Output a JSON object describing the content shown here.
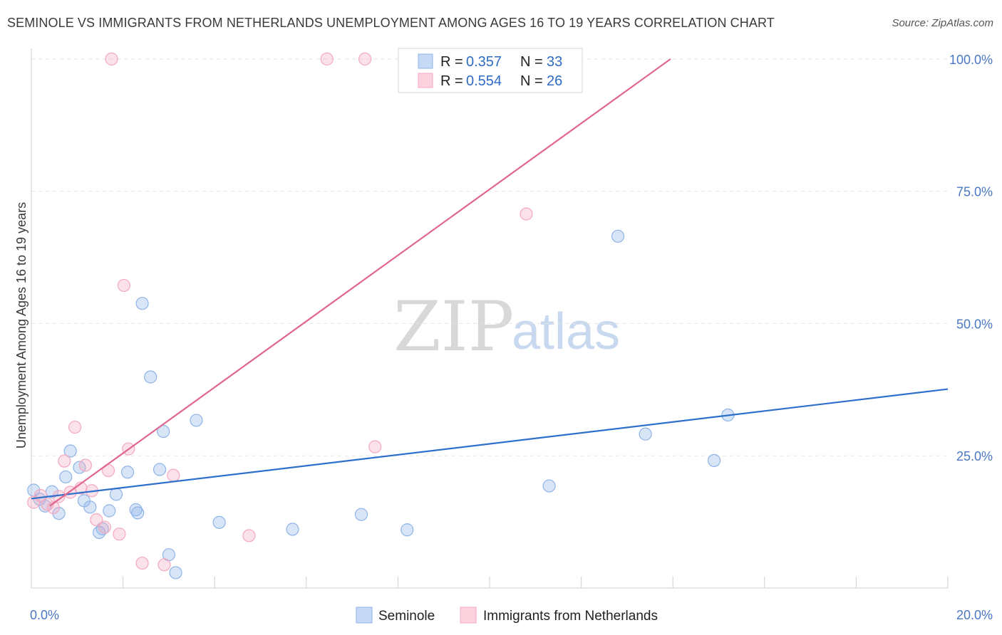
{
  "title": "SEMINOLE VS IMMIGRANTS FROM NETHERLANDS UNEMPLOYMENT AMONG AGES 16 TO 19 YEARS CORRELATION CHART",
  "source": "Source: ZipAtlas.com",
  "watermark": {
    "zip": "ZIP",
    "atlas": "atlas"
  },
  "chart_data": {
    "type": "scatter",
    "xlabel": "",
    "ylabel": "Unemployment Among Ages 16 to 19 years",
    "xlim": [
      0,
      20
    ],
    "ylim": [
      0,
      102
    ],
    "x_tick_labels": [
      "0.0%",
      "20.0%"
    ],
    "y_ticks": [
      25,
      50,
      75,
      100
    ],
    "y_tick_labels": [
      "25.0%",
      "50.0%",
      "75.0%",
      "100.0%"
    ],
    "grid": true,
    "legend": {
      "placement": "top-center",
      "entries": [
        {
          "r_label": "R = ",
          "r_value": "0.357",
          "n_label": "N = ",
          "n_value": "33"
        },
        {
          "r_label": "R = ",
          "r_value": "0.554",
          "n_label": "N = ",
          "n_value": "26"
        }
      ]
    },
    "series": [
      {
        "name": "Seminole",
        "color": "#8fb4e8",
        "line_color": "#2f6fcc",
        "trend": {
          "x": [
            0,
            20
          ],
          "y": [
            16.9,
            37.6
          ]
        },
        "points": [
          {
            "x": 0.05,
            "y": 18.5
          },
          {
            "x": 0.18,
            "y": 16.8
          },
          {
            "x": 0.3,
            "y": 15.5
          },
          {
            "x": 0.45,
            "y": 18.2
          },
          {
            "x": 0.6,
            "y": 14.1
          },
          {
            "x": 0.75,
            "y": 21.0
          },
          {
            "x": 0.85,
            "y": 25.9
          },
          {
            "x": 1.05,
            "y": 22.8
          },
          {
            "x": 1.15,
            "y": 16.5
          },
          {
            "x": 1.28,
            "y": 15.3
          },
          {
            "x": 1.48,
            "y": 10.5
          },
          {
            "x": 1.55,
            "y": 11.2
          },
          {
            "x": 1.7,
            "y": 14.6
          },
          {
            "x": 1.85,
            "y": 17.7
          },
          {
            "x": 2.1,
            "y": 21.9
          },
          {
            "x": 2.28,
            "y": 14.8
          },
          {
            "x": 2.32,
            "y": 14.2
          },
          {
            "x": 2.42,
            "y": 53.8
          },
          {
            "x": 2.6,
            "y": 39.9
          },
          {
            "x": 2.8,
            "y": 22.4
          },
          {
            "x": 2.88,
            "y": 29.6
          },
          {
            "x": 3.0,
            "y": 6.3
          },
          {
            "x": 3.15,
            "y": 2.9
          },
          {
            "x": 3.6,
            "y": 31.7
          },
          {
            "x": 4.1,
            "y": 12.4
          },
          {
            "x": 5.7,
            "y": 11.1
          },
          {
            "x": 7.2,
            "y": 13.9
          },
          {
            "x": 8.2,
            "y": 11.0
          },
          {
            "x": 11.3,
            "y": 19.3
          },
          {
            "x": 12.8,
            "y": 66.5
          },
          {
            "x": 13.4,
            "y": 29.1
          },
          {
            "x": 14.9,
            "y": 24.1
          },
          {
            "x": 15.2,
            "y": 32.7
          }
        ]
      },
      {
        "name": "Immigrants from Netherlands",
        "color": "#f4a9c0",
        "line_color": "#e0668e",
        "trend": {
          "x": [
            0.4,
            13.95
          ],
          "y": [
            15.5,
            100
          ]
        },
        "points": [
          {
            "x": 0.05,
            "y": 16.2
          },
          {
            "x": 0.2,
            "y": 17.5
          },
          {
            "x": 0.35,
            "y": 15.8
          },
          {
            "x": 0.48,
            "y": 15.2
          },
          {
            "x": 0.6,
            "y": 17.3
          },
          {
            "x": 0.72,
            "y": 24.0
          },
          {
            "x": 0.85,
            "y": 18.1
          },
          {
            "x": 0.95,
            "y": 30.4
          },
          {
            "x": 1.08,
            "y": 18.9
          },
          {
            "x": 1.18,
            "y": 23.2
          },
          {
            "x": 1.32,
            "y": 18.4
          },
          {
            "x": 1.42,
            "y": 12.9
          },
          {
            "x": 1.6,
            "y": 11.5
          },
          {
            "x": 1.68,
            "y": 22.2
          },
          {
            "x": 1.75,
            "y": 100
          },
          {
            "x": 1.92,
            "y": 10.2
          },
          {
            "x": 2.02,
            "y": 57.2
          },
          {
            "x": 2.12,
            "y": 26.3
          },
          {
            "x": 2.42,
            "y": 4.7
          },
          {
            "x": 2.9,
            "y": 4.4
          },
          {
            "x": 3.1,
            "y": 21.3
          },
          {
            "x": 4.75,
            "y": 9.9
          },
          {
            "x": 6.45,
            "y": 100
          },
          {
            "x": 7.28,
            "y": 100
          },
          {
            "x": 7.5,
            "y": 26.7
          },
          {
            "x": 10.8,
            "y": 70.7
          }
        ]
      }
    ]
  }
}
